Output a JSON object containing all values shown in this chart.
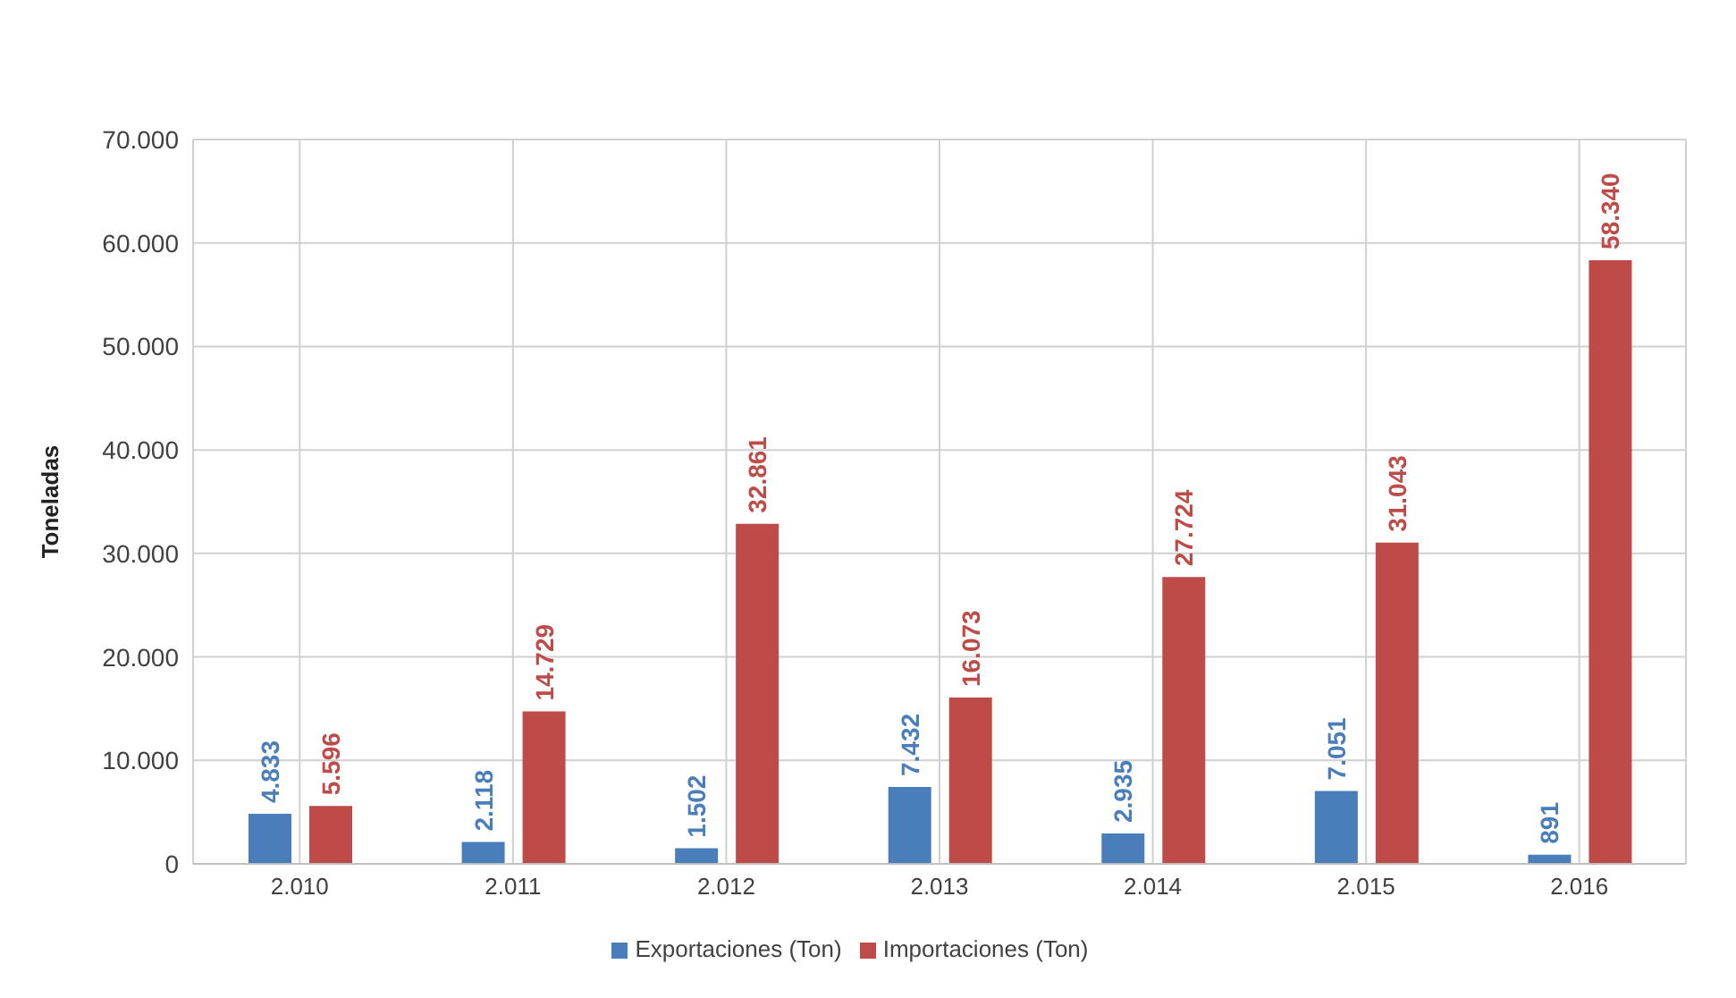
{
  "chart_data": {
    "type": "bar",
    "ylabel": "Toneladas",
    "categories": [
      "2.010",
      "2.011",
      "2.012",
      "2.013",
      "2.014",
      "2.015",
      "2.016"
    ],
    "series": [
      {
        "name": "Exportaciones (Ton)",
        "color": "#4a7ebb",
        "values": [
          4833,
          2118,
          1502,
          7432,
          2935,
          7051,
          891
        ],
        "value_labels": [
          "4.833",
          "2.118",
          "1.502",
          "7.432",
          "2.935",
          "7.051",
          "891"
        ]
      },
      {
        "name": "Importaciones (Ton)",
        "color": "#be4b48",
        "values": [
          5596,
          14729,
          32861,
          16073,
          27724,
          31043,
          58340
        ],
        "value_labels": [
          "5.596",
          "14.729",
          "32.861",
          "16.073",
          "27.724",
          "31.043",
          "58.340"
        ]
      }
    ],
    "ylim": [
      0,
      70000
    ],
    "yticks": [
      {
        "value": 0,
        "label": "0"
      },
      {
        "value": 10000,
        "label": "10.000"
      },
      {
        "value": 20000,
        "label": "20.000"
      },
      {
        "value": 30000,
        "label": "30.000"
      },
      {
        "value": 40000,
        "label": "40.000"
      },
      {
        "value": 50000,
        "label": "50.000"
      },
      {
        "value": 60000,
        "label": "60.000"
      },
      {
        "value": 70000,
        "label": "70.000"
      }
    ],
    "grid": true,
    "legend": "bottom"
  }
}
